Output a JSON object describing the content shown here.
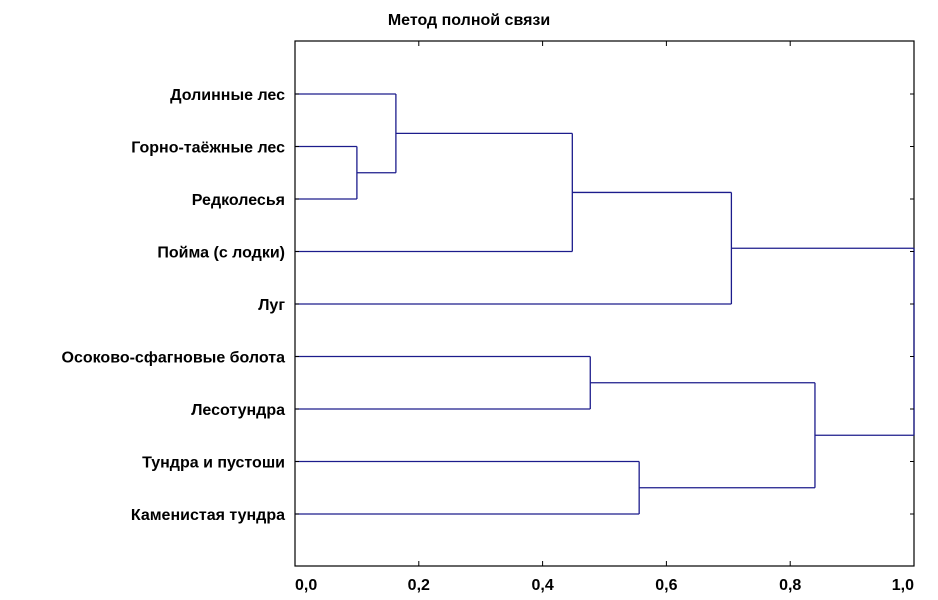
{
  "chart_data": {
    "type": "dendrogram",
    "title": "Метод полной связи",
    "xlim": [
      0,
      1.0
    ],
    "xticks": [
      "0,0",
      "0,2",
      "0,4",
      "0,6",
      "0,8",
      "1,0"
    ],
    "xtick_values": [
      0,
      0.2,
      0.4,
      0.6,
      0.8,
      1.0
    ],
    "leaves": [
      "Долинные лес",
      "Горно-таёжные лес",
      "Редколесья",
      "Пойма (с лодки)",
      "Луг",
      "Осоково-сфагновые болота",
      "Лесотундра",
      "Тундра и пустоши",
      "Каменистая тундра"
    ],
    "merges": [
      {
        "a": 1,
        "b": 2,
        "height": 0.1
      },
      {
        "a": 0,
        "b": "m0",
        "height": 0.163
      },
      {
        "a": "m1",
        "b": 3,
        "height": 0.448
      },
      {
        "a": "m2",
        "b": 4,
        "height": 0.705
      },
      {
        "a": 5,
        "b": 6,
        "height": 0.477
      },
      {
        "a": 7,
        "b": 8,
        "height": 0.556
      },
      {
        "a": "m4",
        "b": "m5",
        "height": 0.84
      },
      {
        "a": "m3",
        "b": "m6",
        "height": 1.0
      }
    ],
    "line_color": "#1c1c8c"
  }
}
